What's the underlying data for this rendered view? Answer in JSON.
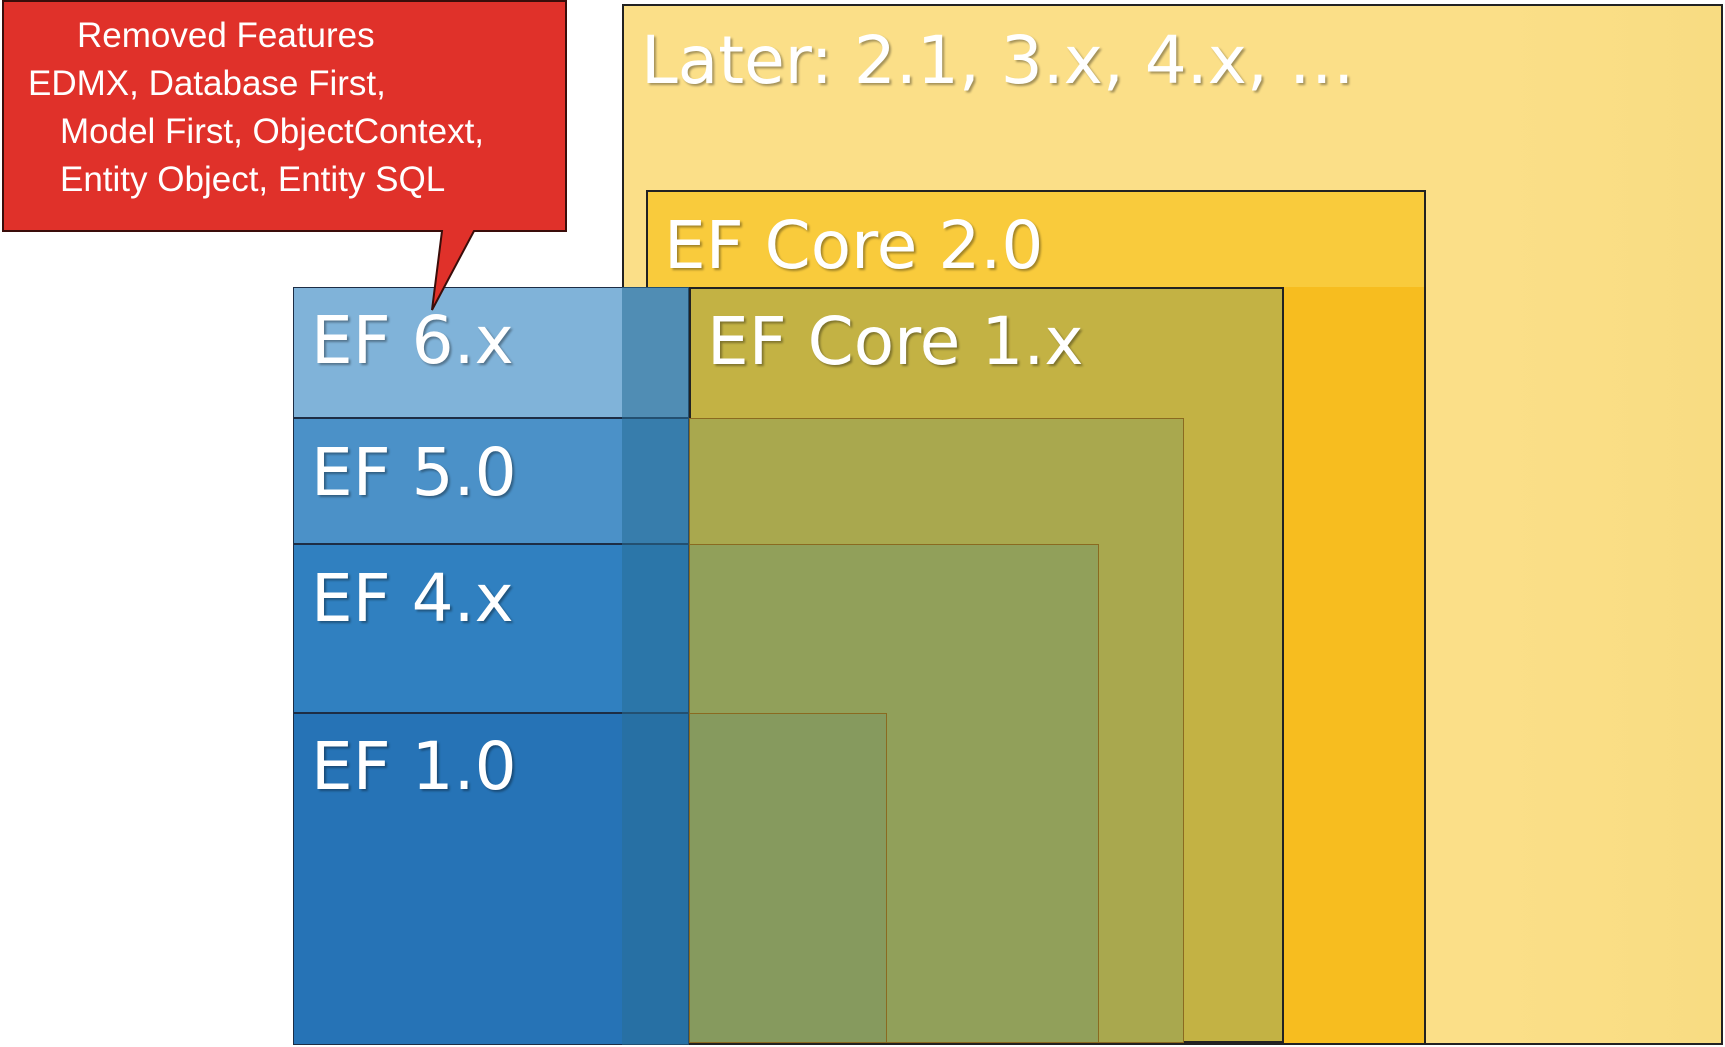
{
  "diagram": {
    "later_label": "Later: 2.1, 3.x, 4.x, …",
    "core2_label": "EF Core 2.0",
    "core1_label": "EF Core 1.x",
    "ef6_label": "EF 6.x",
    "ef5_label": "EF 5.0",
    "ef4_label": "EF 4.x",
    "ef1_label": "EF 1.0"
  },
  "callout": {
    "title": "Removed Features",
    "line1": "EDMX, Database First,",
    "line2": "Model First,  ObjectContext,",
    "line3": "Entity Object,   Entity SQL"
  },
  "colors": {
    "later": "#fbdf88",
    "core2": "#f9cb3c",
    "core1": "#c3b244",
    "ef6": "#80b3d9",
    "ef5": "#4b91c8",
    "ef4": "#3080c0",
    "ef1": "#2673b6",
    "callout": "#e0312a"
  }
}
